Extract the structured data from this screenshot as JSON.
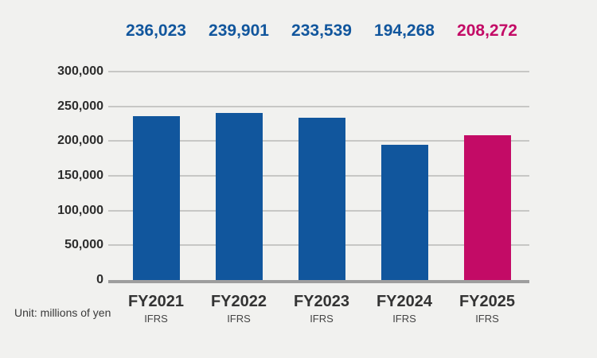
{
  "chart_data": {
    "type": "bar",
    "title": "",
    "xlabel": "",
    "ylabel": "",
    "unit_note": "Unit: millions of yen",
    "categories": [
      "FY2021",
      "FY2022",
      "FY2023",
      "FY2024",
      "FY2025"
    ],
    "category_sublabels": [
      "IFRS",
      "IFRS",
      "IFRS",
      "IFRS",
      "IFRS"
    ],
    "values": [
      236023,
      239901,
      233539,
      194268,
      208272
    ],
    "value_labels": [
      "236,023",
      "239,901",
      "233,539",
      "194,268",
      "208,272"
    ],
    "bar_colors": [
      "#11569D",
      "#11569D",
      "#11569D",
      "#11569D",
      "#C30B66"
    ],
    "ylim": [
      0,
      300000
    ],
    "ytick_step": 50000,
    "ytick_labels": [
      "0",
      "50,000",
      "100,000",
      "150,000",
      "200,000",
      "250,000",
      "300,000"
    ],
    "grid": true,
    "legend_position": "none"
  },
  "colors": {
    "background": "#F1F1EF",
    "gridline": "#C7C7C5",
    "axis_line": "#9E9E9E",
    "tick_label": "#2D2D2D",
    "category_label": "#333333",
    "sublabel": "#454545",
    "note": "#3A3A3A",
    "accent_blue": "#11569D",
    "accent_magenta": "#C30B66"
  }
}
